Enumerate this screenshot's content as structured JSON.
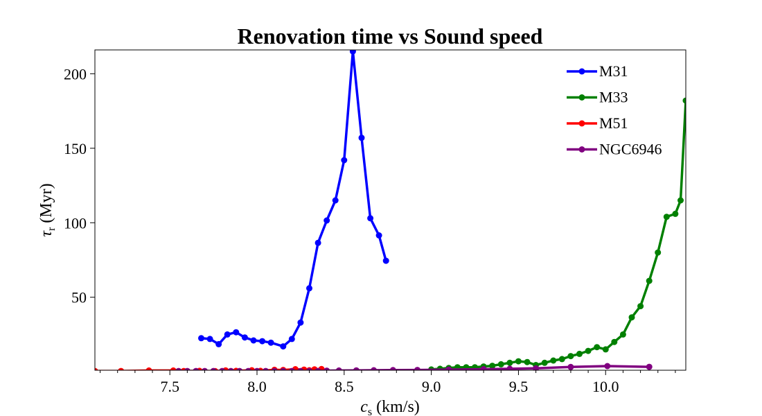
{
  "chart_data": {
    "type": "line",
    "title": "Renovation time vs Sound speed",
    "xlabel": {
      "main": "c",
      "sub": "s",
      "rest": " (km/s)"
    },
    "ylabel": {
      "main": "τ",
      "sub": "r",
      "rest": " (Myr)"
    },
    "xlim": [
      7.07,
      10.46
    ],
    "ylim": [
      1,
      216
    ],
    "xticks": [
      7.5,
      8.0,
      8.5,
      9.0,
      9.5,
      10.0
    ],
    "xtick_labels": [
      "7.5",
      "8.0",
      "8.5",
      "9.0",
      "9.5",
      "10.0"
    ],
    "yticks": [
      50,
      100,
      150,
      200
    ],
    "ytick_labels": [
      "50",
      "100",
      "150",
      "200"
    ],
    "legend_position": "top-right",
    "grid": false,
    "series": [
      {
        "name": "M31",
        "color": "#0000ff",
        "x": [
          7.68,
          7.73,
          7.78,
          7.83,
          7.88,
          7.93,
          7.98,
          8.03,
          8.08,
          8.15,
          8.2,
          8.25,
          8.3,
          8.35,
          8.4,
          8.45,
          8.5,
          8.55,
          8.6,
          8.65,
          8.7,
          8.74
        ],
        "y": [
          22.5,
          22,
          18.5,
          25,
          26.5,
          23,
          21,
          20.5,
          19.5,
          17,
          22,
          33,
          56,
          86.5,
          101.5,
          115,
          142,
          215,
          157,
          103,
          91.5,
          74.5
        ]
      },
      {
        "name": "M33",
        "color": "#008000",
        "x": [
          9.0,
          9.05,
          9.1,
          9.15,
          9.2,
          9.25,
          9.3,
          9.35,
          9.4,
          9.45,
          9.5,
          9.55,
          9.6,
          9.65,
          9.7,
          9.75,
          9.8,
          9.85,
          9.9,
          9.95,
          10.0,
          10.05,
          10.1,
          10.15,
          10.2,
          10.25,
          10.3,
          10.35,
          10.4,
          10.43,
          10.46
        ],
        "y": [
          1.5,
          2,
          2.5,
          3,
          3,
          3,
          3.5,
          4,
          5,
          6,
          7,
          6.5,
          4.5,
          6,
          7.5,
          8.5,
          10.5,
          12,
          14,
          16.5,
          15,
          20,
          25,
          36.5,
          44,
          61,
          80,
          104,
          106,
          115,
          182
        ]
      },
      {
        "name": "M51",
        "color": "#ff0000",
        "x": [
          7.07,
          7.22,
          7.38,
          7.52,
          7.58,
          7.67,
          7.76,
          7.82,
          7.88,
          7.97,
          8.02,
          8.1,
          8.15,
          8.22,
          8.27,
          8.3,
          8.33,
          8.37
        ],
        "y": [
          0.5,
          0.5,
          0.8,
          0.8,
          0.5,
          0.6,
          0.4,
          0.9,
          0.6,
          1.0,
          0.6,
          1.3,
          1.2,
          1.7,
          1.4,
          1.0,
          1.6,
          1.8
        ]
      },
      {
        "name": "NGC6946",
        "color": "#800080",
        "x": [
          7.55,
          7.6,
          7.65,
          7.7,
          7.75,
          7.8,
          7.85,
          7.9,
          7.95,
          8.0,
          8.05,
          8.1,
          8.15,
          8.2,
          8.25,
          8.3,
          8.35,
          8.4,
          8.47,
          8.57,
          8.67,
          8.78,
          8.92,
          9.1,
          9.3,
          9.45,
          9.6,
          9.8,
          10.01,
          10.25
        ],
        "y": [
          0.5,
          0.5,
          0.5,
          0.5,
          0.5,
          0.5,
          0.5,
          0.5,
          0.5,
          0.5,
          0.5,
          0.5,
          0.5,
          0.5,
          0.5,
          0.5,
          0.5,
          0.7,
          0.8,
          0.9,
          1.0,
          1.1,
          1.2,
          1.4,
          1.7,
          2.0,
          2.3,
          3.2,
          3.8,
          3.3
        ]
      }
    ]
  }
}
